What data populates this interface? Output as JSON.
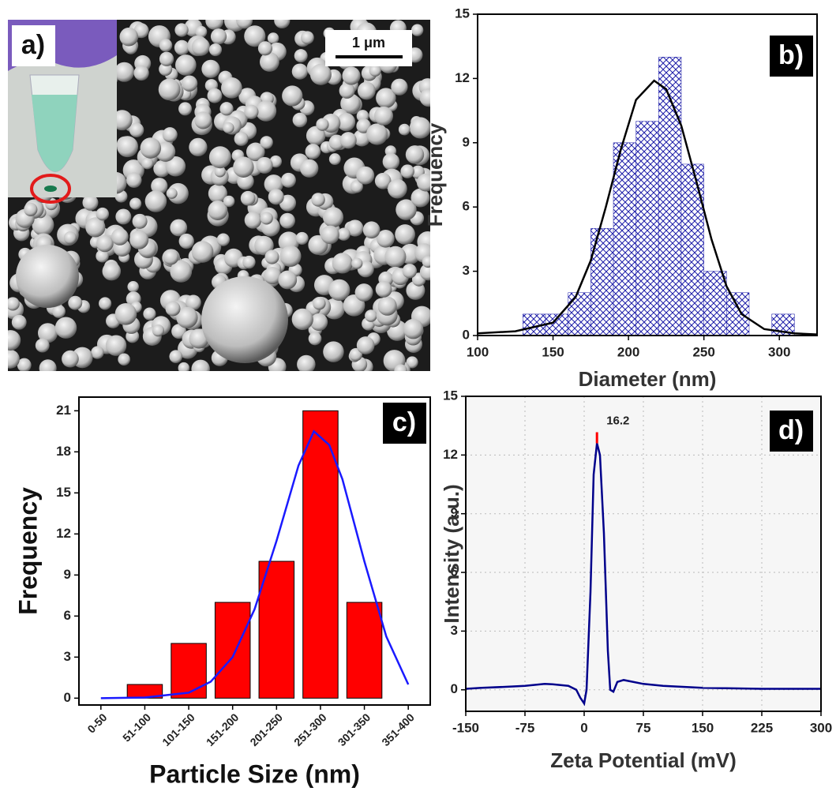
{
  "panel_a": {
    "label": "a)",
    "scale_bar": "1 μm"
  },
  "chart_data": [
    {
      "type": "histogram",
      "panel_label": "b)",
      "xlabel": "Diameter (nm)",
      "ylabel": "Frequency",
      "bins": [
        130,
        145,
        160,
        175,
        190,
        205,
        220,
        235,
        250,
        265,
        280,
        295,
        310
      ],
      "values": [
        1,
        1,
        2,
        5,
        9,
        10,
        13,
        8,
        3,
        2,
        0,
        1
      ],
      "color": "#1c1ca8",
      "fit": {
        "x": [
          100,
          125,
          150,
          165,
          175,
          185,
          195,
          205,
          217,
          225,
          235,
          245,
          255,
          265,
          275,
          290,
          310,
          325
        ],
        "values": [
          0.1,
          0.2,
          0.6,
          1.8,
          3.5,
          6,
          8.7,
          11,
          11.9,
          11.5,
          9.8,
          7.2,
          4.5,
          2.3,
          1,
          0.3,
          0.1,
          0.05
        ],
        "color": "#000000"
      },
      "xlim": [
        100,
        325
      ],
      "ylim": [
        0,
        15
      ],
      "xticks": [
        100,
        150,
        200,
        250,
        300
      ],
      "yticks": [
        0,
        3,
        6,
        9,
        12,
        15
      ]
    },
    {
      "type": "bar",
      "panel_label": "c)",
      "xlabel": "Particle Size (nm)",
      "ylabel": "Frequency",
      "categories": [
        "0-50",
        "51-100",
        "101-150",
        "151-200",
        "201-250",
        "251-300",
        "301-350",
        "351-400"
      ],
      "values": [
        0,
        1,
        4,
        7,
        10,
        21,
        7,
        0
      ],
      "color": "#ff0000",
      "fit": {
        "x": [
          0,
          1,
          2,
          2.5,
          3,
          3.5,
          4,
          4.5,
          4.85,
          5.2,
          5.5,
          6,
          6.5,
          7
        ],
        "values": [
          0,
          0.05,
          0.4,
          1.2,
          3,
          6.5,
          11.5,
          17,
          19.5,
          18.5,
          16,
          10,
          4.5,
          1
        ],
        "color": "#1a1aff"
      },
      "ylim": [
        -0.5,
        22
      ],
      "yticks": [
        0,
        3,
        6,
        9,
        12,
        15,
        18,
        21
      ]
    },
    {
      "type": "line",
      "panel_label": "d)",
      "xlabel": "Zeta Potential (mV)",
      "ylabel": "Intensity (a.u.)",
      "x": [
        -150,
        -130,
        -100,
        -75,
        -50,
        -40,
        -20,
        -10,
        -5,
        0,
        3,
        8,
        12,
        16.2,
        20,
        25,
        30,
        33,
        37,
        42,
        50,
        75,
        100,
        150,
        225,
        300
      ],
      "values": [
        0.05,
        0.1,
        0.15,
        0.2,
        0.3,
        0.28,
        0.2,
        0,
        -0.4,
        -0.7,
        0,
        5,
        11,
        12.6,
        12,
        8,
        2,
        0,
        -0.1,
        0.4,
        0.5,
        0.3,
        0.2,
        0.1,
        0.05,
        0.05
      ],
      "color": "#00008b",
      "peak": 16.2,
      "peak_color": "#ff0000",
      "xlim": [
        -150,
        300
      ],
      "ylim": [
        -1.1,
        15
      ],
      "xticks": [
        -150,
        -75,
        0,
        75,
        150,
        225,
        300
      ],
      "yticks": [
        0,
        3,
        6,
        9,
        12,
        15
      ],
      "grid": true
    }
  ]
}
